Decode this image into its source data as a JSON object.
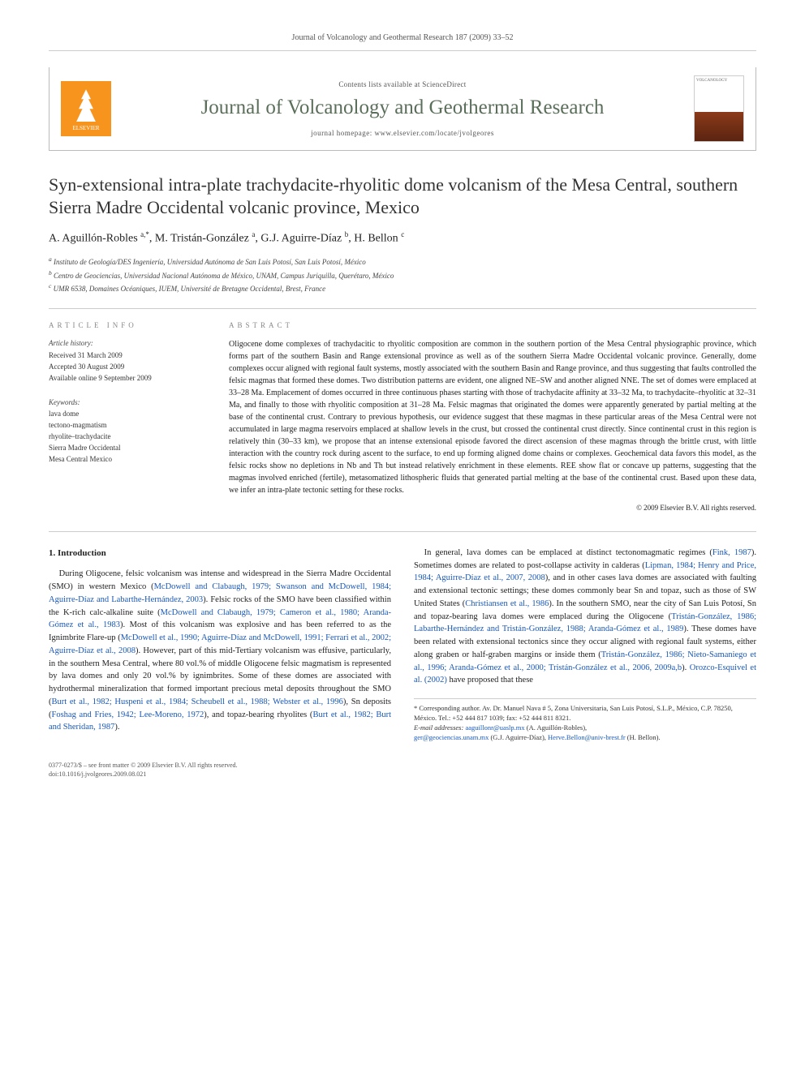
{
  "running_header": "Journal of Volcanology and Geothermal Research 187 (2009) 33–52",
  "masthead": {
    "publisher_label": "ELSEVIER",
    "contents_line": "Contents lists available at ScienceDirect",
    "journal_title": "Journal of Volcanology and Geothermal Research",
    "homepage_line": "journal homepage: www.elsevier.com/locate/jvolgeores",
    "cover_label": "VOLCANOLOGY"
  },
  "article": {
    "title": "Syn-extensional intra-plate trachydacite-rhyolitic dome volcanism of the Mesa Central, southern Sierra Madre Occidental volcanic province, Mexico",
    "authors_html": "A. Aguillón-Robles <sup>a,*</sup>, M. Tristán-González <sup>a</sup>, G.J. Aguirre-Díaz <sup>b</sup>, H. Bellon <sup>c</sup>",
    "affiliations": {
      "a": "Instituto de Geología/DES Ingeniería, Universidad Autónoma de San Luis Potosí, San Luis Potosí, México",
      "b": "Centro de Geociencias, Universidad Nacional Autónoma de México, UNAM, Campus Juriquilla, Querétaro, México",
      "c": "UMR 6538, Domaines Océaniques, IUEM, Université de Bretagne Occidental, Brest, France"
    }
  },
  "section_labels": {
    "article_info": "ARTICLE INFO",
    "abstract": "ABSTRACT",
    "history_heading": "Article history:",
    "keywords_heading": "Keywords:"
  },
  "history": {
    "received": "Received 31 March 2009",
    "accepted": "Accepted 30 August 2009",
    "online": "Available online 9 September 2009"
  },
  "keywords": [
    "lava dome",
    "tectono-magmatism",
    "rhyolite–trachydacite",
    "Sierra Madre Occidental",
    "Mesa Central Mexico"
  ],
  "abstract": "Oligocene dome complexes of trachydacitic to rhyolitic composition are common in the southern portion of the Mesa Central physiographic province, which forms part of the southern Basin and Range extensional province as well as of the southern Sierra Madre Occidental volcanic province. Generally, dome complexes occur aligned with regional fault systems, mostly associated with the southern Basin and Range province, and thus suggesting that faults controlled the felsic magmas that formed these domes. Two distribution patterns are evident, one aligned NE–SW and another aligned NNE. The set of domes were emplaced at 33–28 Ma. Emplacement of domes occurred in three continuous phases starting with those of trachydacite affinity at 33–32 Ma, to trachydacite–rhyolitic at 32–31 Ma, and finally to those with rhyolitic composition at 31–28 Ma. Felsic magmas that originated the domes were apparently generated by partial melting at the base of the continental crust. Contrary to previous hypothesis, our evidence suggest that these magmas in these particular areas of the Mesa Central were not accumulated in large magma reservoirs emplaced at shallow levels in the crust, but crossed the continental crust directly. Since continental crust in this region is relatively thin (30–33 km), we propose that an intense extensional episode favored the direct ascension of these magmas through the brittle crust, with little interaction with the country rock during ascent to the surface, to end up forming aligned dome chains or complexes. Geochemical data favors this model, as the felsic rocks show no depletions in Nb and Th but instead relatively enrichment in these elements. REE show flat or concave up patterns, suggesting that the magmas involved enriched (fertile), metasomatized lithospheric fluids that generated partial melting at the base of the continental crust. Based upon these data, we infer an intra-plate tectonic setting for these rocks.",
  "copyright": "© 2009 Elsevier B.V. All rights reserved.",
  "intro_heading": "1. Introduction",
  "intro_para1_a": "During Oligocene, felsic volcanism was intense and widespread in the Sierra Madre Occidental (SMO) in western Mexico (",
  "intro_refs1": "McDowell and Clabaugh, 1979; Swanson and McDowell, 1984; Aguirre-Díaz and Labarthe-Hernández, 2003",
  "intro_para1_b": "). Felsic rocks of the SMO have been classified within the K-rich calc-alkaline suite (",
  "intro_refs2": "McDowell and Clabaugh, 1979; Cameron et al., 1980; Aranda-Gómez et al., 1983",
  "intro_para1_c": "). Most of this volcanism was explosive and has been referred to as the Ignimbrite Flare-up (",
  "intro_refs3": "McDowell et al., 1990; Aguirre-Díaz and McDowell, 1991; Ferrari et al., 2002; Aguirre-Díaz et al., 2008",
  "intro_para1_d": "). However, part of this mid-Tertiary volcanism was effusive, particularly, in the southern Mesa Central, where 80 vol.% of middle Oligocene felsic magmatism is represented by lava domes and only 20 vol.% by ignimbrites. Some of these domes are associated with hydrothermal mineralization that formed important precious metal deposits throughout the SMO (",
  "intro_refs4": "Burt et al., 1982; Huspeni et al., 1984; Scheubell et al., 1988; Webster et al., 1996",
  "intro_para1_e": "), Sn deposits (",
  "intro_refs5": "Foshag and Fries, 1942; Lee-Moreno, 1972",
  "intro_para1_f": "), and topaz-bearing rhyolites (",
  "intro_refs6": "Burt et al., 1982; Burt and Sheridan, 1987",
  "intro_para1_g": ").",
  "intro_para2_a": "In general, lava domes can be emplaced at distinct tectonomagmatic regimes (",
  "intro_refs7": "Fink, 1987",
  "intro_para2_b": "). Sometimes domes are related to post-collapse activity in calderas (",
  "intro_refs8": "Lipman, 1984; Henry and Price, 1984; Aguirre-Díaz et al., 2007, 2008",
  "intro_para2_c": "), and in other cases lava domes are associated with faulting and extensional tectonic settings; these domes commonly bear Sn and topaz, such as those of SW United States (",
  "intro_refs9": "Christiansen et al., 1986",
  "intro_para2_d": "). In the southern SMO, near the city of San Luis Potosí, Sn and topaz-bearing lava domes were emplaced during the Oligocene (",
  "intro_refs10": "Tristán-González, 1986; Labarthe-Hernández and Tristán-González, 1988; Aranda-Gómez et al., 1989",
  "intro_para2_e": "). These domes have been related with extensional tectonics since they occur aligned with regional fault systems, either along graben or half-graben margins or inside them (",
  "intro_refs11": "Tristán-González, 1986; Nieto-Samaniego et al., 1996; Aranda-Gómez et al., 2000; Tristán-González et al., 2006, 2009a,b",
  "intro_para2_f": "). ",
  "intro_refs12": "Orozco-Esquivel et al. (2002)",
  "intro_para2_g": " have proposed that these",
  "footnote": {
    "corr": "* Corresponding author. Av. Dr. Manuel Nava # 5, Zona Universitaria, San Luis Potosí, S.L.P., México, C.P. 78250, México. Tel.: +52 444 817 1039; fax: +52 444 811 8321.",
    "emails_label": "E-mail addresses:",
    "e1": "aaguillonr@uaslp.mx",
    "e1_who": " (A. Aguillón-Robles),",
    "e2": "ger@geociencias.unam.mx",
    "e2_who": " (G.J. Aguirre-Díaz), ",
    "e3": "Herve.Bellon@univ-brest.fr",
    "e3_who": " (H. Bellon)."
  },
  "bottom": {
    "issn_line": "0377-0273/$ – see front matter © 2009 Elsevier B.V. All rights reserved.",
    "doi_line": "doi:10.1016/j.jvolgeores.2009.08.021"
  },
  "colors": {
    "link": "#1858b8",
    "journal": "#5a6e5a",
    "publisher": "#f7941e",
    "rule": "#cccccc"
  }
}
